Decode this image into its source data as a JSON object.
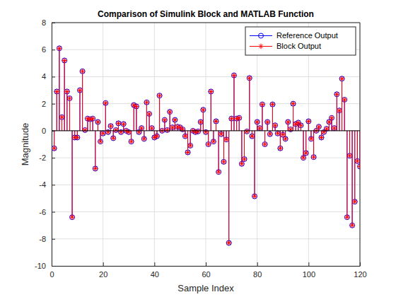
{
  "chart_data": {
    "type": "stem",
    "title": "Comparison of Simulink Block and MATLAB Function",
    "x_label": "Sample Index",
    "y_label": "Magnitude",
    "x": [
      1,
      2,
      3,
      4,
      5,
      6,
      7,
      8,
      9,
      10,
      11,
      12,
      13,
      14,
      15,
      16,
      17,
      18,
      19,
      20,
      21,
      22,
      23,
      24,
      25,
      26,
      27,
      28,
      29,
      30,
      31,
      32,
      33,
      34,
      35,
      36,
      37,
      38,
      39,
      40,
      41,
      42,
      43,
      44,
      45,
      46,
      47,
      48,
      49,
      50,
      51,
      52,
      53,
      54,
      55,
      56,
      57,
      58,
      59,
      60,
      61,
      62,
      63,
      64,
      65,
      66,
      67,
      68,
      69,
      70,
      71,
      72,
      73,
      74,
      75,
      76,
      77,
      78,
      79,
      80,
      81,
      82,
      83,
      84,
      85,
      86,
      87,
      88,
      89,
      90,
      91,
      92,
      93,
      94,
      95,
      96,
      97,
      98,
      99,
      100,
      101,
      102,
      103,
      104,
      105,
      106,
      107,
      108,
      109,
      110,
      111,
      112,
      113,
      114,
      115,
      116,
      117,
      118,
      119,
      120
    ],
    "series": [
      {
        "name": "Reference Output",
        "color": "#0000ff",
        "marker": "circle",
        "values": [
          -1.3,
          2.9,
          6.1,
          1.0,
          5.2,
          2.9,
          2.4,
          -6.4,
          -0.5,
          -0.5,
          3.0,
          4.4,
          0.05,
          0.9,
          0.85,
          0.9,
          -2.8,
          0.65,
          -0.8,
          -0.2,
          2.05,
          -0.1,
          0.35,
          -0.55,
          0.05,
          0.55,
          -0.1,
          0.5,
          0.0,
          -0.1,
          -0.8,
          1.9,
          1.8,
          -0.1,
          0.2,
          -0.6,
          2.1,
          1.25,
          0.2,
          -0.5,
          -0.4,
          2.6,
          0.0,
          0.8,
          0.05,
          1.4,
          0.25,
          0.8,
          0.3,
          0.25,
          0.1,
          -0.4,
          -1.6,
          -1.1,
          0.0,
          -0.1,
          -0.05,
          0.65,
          1.55,
          -0.1,
          -1.0,
          2.9,
          -0.8,
          0.7,
          -3.05,
          -0.25,
          -2.3,
          -0.65,
          -8.3,
          0.9,
          4.1,
          0.9,
          0.95,
          -2.45,
          -2.1,
          -0.05,
          3.9,
          -0.4,
          -4.85,
          0.65,
          0.2,
          1.95,
          -1.0,
          0.65,
          -0.25,
          1.95,
          0.4,
          -0.2,
          -1.3,
          -0.3,
          -0.6,
          0.65,
          0.1,
          2.0,
          0.5,
          0.6,
          0.4,
          -2.0,
          -1.65,
          0.7,
          -0.6,
          -1.95,
          0.0,
          0.3,
          -0.5,
          -0.1,
          0.15,
          0.65,
          0.95,
          0.2,
          2.7,
          1.5,
          3.85,
          2.3,
          -6.4,
          -1.85,
          -7.0,
          -5.25,
          -2.25,
          -2.65
        ]
      },
      {
        "name": "Block Output",
        "color": "#ff0000",
        "marker": "asterisk",
        "values": [
          -1.3,
          2.9,
          6.1,
          1.0,
          5.2,
          2.9,
          2.4,
          -6.4,
          -0.5,
          -0.5,
          3.0,
          4.4,
          0.05,
          0.9,
          0.85,
          0.9,
          -2.8,
          0.65,
          -0.8,
          -0.2,
          2.05,
          -0.1,
          0.35,
          -0.55,
          0.05,
          0.55,
          -0.1,
          0.5,
          0.0,
          -0.1,
          -0.8,
          1.9,
          1.8,
          -0.1,
          0.2,
          -0.6,
          2.1,
          1.25,
          0.2,
          -0.5,
          -0.4,
          2.6,
          0.0,
          0.8,
          0.05,
          1.4,
          0.25,
          0.8,
          0.3,
          0.25,
          0.1,
          -0.4,
          -1.6,
          -1.1,
          0.0,
          -0.1,
          -0.05,
          0.65,
          1.55,
          -0.1,
          -1.0,
          2.9,
          -0.8,
          0.7,
          -3.05,
          -0.25,
          -2.3,
          -0.65,
          -8.3,
          0.9,
          4.1,
          0.9,
          0.95,
          -2.45,
          -2.1,
          -0.05,
          3.9,
          -0.4,
          -4.85,
          0.65,
          0.2,
          1.95,
          -1.0,
          0.65,
          -0.25,
          1.95,
          0.4,
          -0.2,
          -1.3,
          -0.3,
          -0.6,
          0.65,
          0.1,
          2.0,
          0.5,
          0.6,
          0.4,
          -2.0,
          -1.65,
          0.7,
          -0.6,
          -1.95,
          0.0,
          0.3,
          -0.5,
          -0.1,
          0.15,
          0.65,
          0.95,
          0.2,
          2.7,
          1.5,
          3.85,
          2.3,
          -6.4,
          -1.85,
          -7.0,
          -5.25,
          -2.25,
          -2.65
        ]
      }
    ],
    "xlim": [
      0,
      120
    ],
    "xticks": [
      0,
      20,
      40,
      60,
      80,
      100,
      120
    ],
    "ylim": [
      -10,
      8
    ],
    "yticks": [
      -10,
      -8,
      -6,
      -4,
      -2,
      0,
      2,
      4,
      6,
      8
    ],
    "grid": true,
    "legend": "northeast"
  }
}
